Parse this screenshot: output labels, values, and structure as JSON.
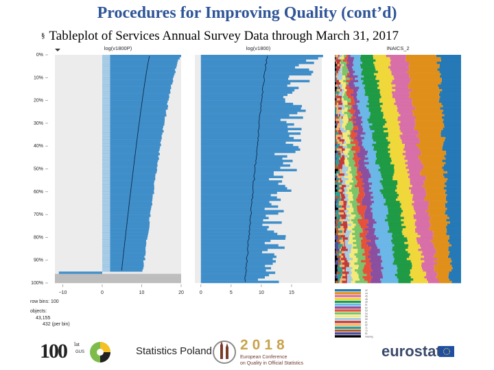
{
  "title": "Procedures for Improving Quality (cont’d)",
  "subtitle": "Tableplot of Services Annual Survey Data through March 31, 2017",
  "bullet": "§",
  "logos": {
    "gus_number": "100",
    "gus_superscript": "lat",
    "gus_label": "GUS",
    "gus_name": "Statistics Poland",
    "conference_year": "2018",
    "conference_line1": "European Conference",
    "conference_line2": "on Quality in Official Statistics",
    "eurostat": "eurostat"
  },
  "colors": {
    "title": "#2e5597",
    "bar": "#3f8ec9",
    "bar_light": "#a9cde6",
    "panel_bg": "#ececec",
    "missing": "#bdbdbd"
  },
  "chart_data": {
    "type": "tableplot",
    "row_bins": 100,
    "objects": "43,155",
    "objects_per_bin": "432 (per bin)",
    "summary_labels": [
      "row bins: 100",
      "objects:"
    ],
    "y_ticks": [
      "0%",
      "10%",
      "20%",
      "30%",
      "40%",
      "50%",
      "60%",
      "70%",
      "80%",
      "90%",
      "100%"
    ],
    "panels": [
      {
        "name": "log(v1800P)",
        "type": "numeric",
        "x_ticks": [
          -10,
          0,
          10,
          20
        ],
        "xlim": [
          -12,
          20
        ],
        "mean_start": 12.0,
        "mean_end": 4.6,
        "bar_start": 20.0,
        "bar_end": 10.0,
        "missing_from_pct": 96,
        "negative_bin_pct": 95,
        "negative_value": -11
      },
      {
        "name": "log(v1800)",
        "type": "numeric",
        "x_ticks": [
          0,
          5,
          10,
          15
        ],
        "xlim": [
          -1,
          20
        ],
        "mean_start": 11.0,
        "mean_end": 7.3,
        "bar_start": 18.0,
        "bar_end": 11.0
      },
      {
        "name": "INAICS_2",
        "type": "categorical",
        "categories": [
          "42",
          "44",
          "45",
          "48",
          "49",
          "51",
          "52",
          "53",
          "54",
          "55",
          "56",
          "61",
          "62",
          "71",
          "72",
          "81",
          "missing"
        ],
        "category_colors": [
          "#2479b6",
          "#e0901a",
          "#d86fa8",
          "#f0d73a",
          "#1f9a45",
          "#6ab7e8",
          "#8b4fa0",
          "#e5513b",
          "#7cc46a",
          "#f5e97a",
          "#a6cbe3",
          "#c13a39",
          "#f4b46c",
          "#2b9e92",
          "#b05d2e",
          "#4d4d9f",
          "#000000"
        ],
        "boundaries_top": [
          18,
          44,
          58,
          70,
          81,
          86,
          90,
          92,
          94,
          96,
          97,
          98,
          98.5,
          99,
          99.3,
          99.6
        ],
        "boundaries_bottom": [
          8,
          18,
          28,
          38,
          50,
          62,
          70,
          76,
          82,
          86,
          90,
          93,
          95,
          97,
          98,
          99.2
        ]
      }
    ]
  }
}
